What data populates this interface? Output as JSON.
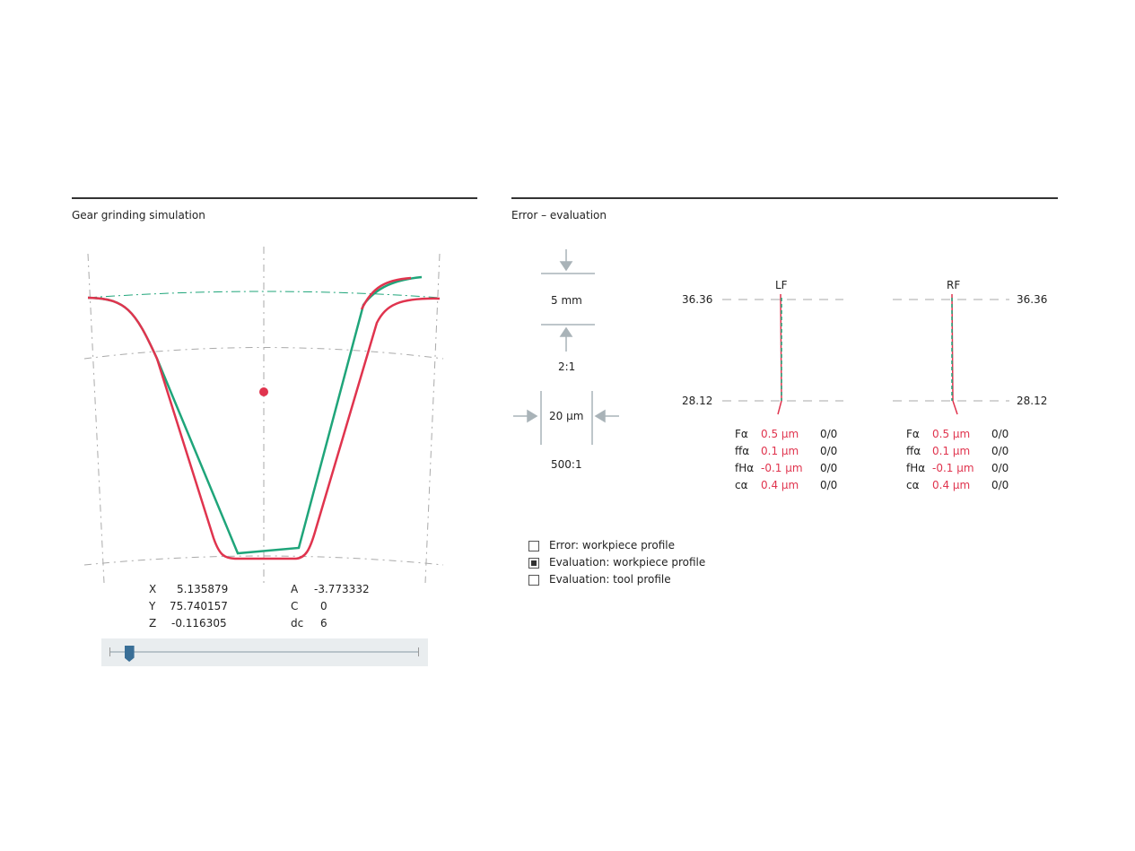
{
  "left_panel": {
    "title": "Gear grinding simulation",
    "coords": {
      "x_label": "X",
      "x_value": "5.135879",
      "y_label": "Y",
      "y_value": "75.740157",
      "z_label": "Z",
      "z_value": "-0.116305",
      "a_label": "A",
      "a_value": "-3.773332",
      "c_label": "C",
      "c_value": "0",
      "dc_label": "dc",
      "dc_value": "6"
    },
    "slider": {
      "position_percent": 6,
      "color": "#3a6f97"
    }
  },
  "right_panel": {
    "title": "Error – evaluation",
    "scale": {
      "length": "5 mm",
      "length_ratio": "2:1",
      "error": "20 µm",
      "error_ratio": "500:1"
    },
    "lf": {
      "label": "LF",
      "top": "36.36",
      "bottom": "28.12",
      "rows": [
        {
          "name": "Fα",
          "value": "0.5 µm",
          "count": "0/0"
        },
        {
          "name": "ffα",
          "value": "0.1 µm",
          "count": "0/0"
        },
        {
          "name": "fHα",
          "value": "-0.1 µm",
          "count": "0/0"
        },
        {
          "name": "cα",
          "value": "0.4 µm",
          "count": "0/0"
        }
      ]
    },
    "rf": {
      "label": "RF",
      "top": "36.36",
      "bottom": "28.12",
      "rows": [
        {
          "name": "Fα",
          "value": "0.5 µm",
          "count": "0/0"
        },
        {
          "name": "ffα",
          "value": "0.1 µm",
          "count": "0/0"
        },
        {
          "name": "fHα",
          "value": "-0.1 µm",
          "count": "0/0"
        },
        {
          "name": "cα",
          "value": "0.4 µm",
          "count": "0/0"
        }
      ]
    },
    "options": [
      {
        "label": "Error: workpiece profile",
        "checked": false
      },
      {
        "label": "Evaluation: workpiece profile",
        "checked": true
      },
      {
        "label": "Evaluation: tool profile",
        "checked": false
      }
    ]
  },
  "colors": {
    "workpiece": "#e0344e",
    "tool": "#1fa57a",
    "grid": "#aaaaaa"
  }
}
